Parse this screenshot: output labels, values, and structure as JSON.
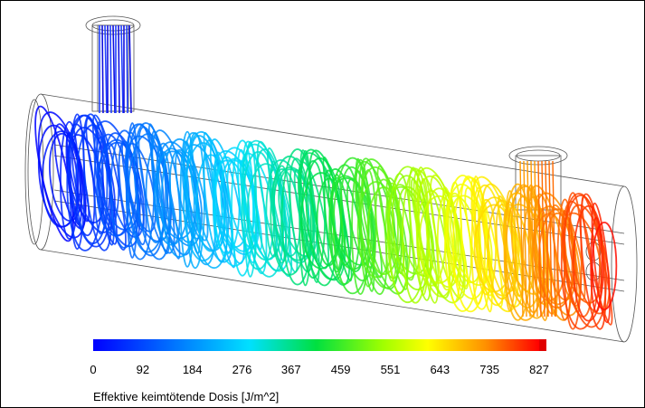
{
  "colorbar": {
    "label": "Effektive keimtötende Dosis [J/m^2]",
    "range": [
      0,
      827
    ],
    "ticks": [
      0,
      92,
      184,
      276,
      367,
      459,
      551,
      643,
      735,
      827
    ]
  }
}
